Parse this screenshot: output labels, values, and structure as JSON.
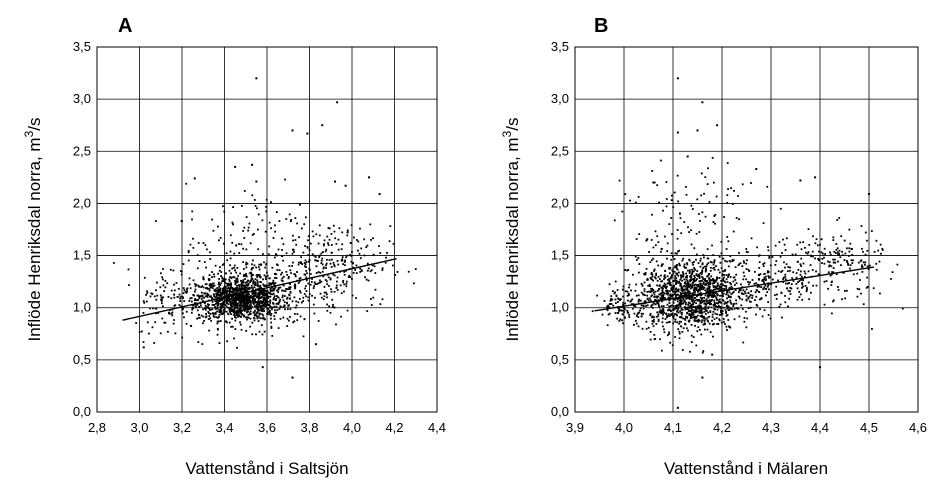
{
  "chart_data": [
    {
      "panel_label": "A",
      "type": "scatter",
      "xlabel": "Vattenstånd i Saltsjön",
      "ylabel_main": "Inflöde Henriksdal norra, m",
      "ylabel_sup": "3",
      "ylabel_tail": "/s",
      "xlim": [
        2.8,
        4.4
      ],
      "ylim": [
        0.0,
        3.5
      ],
      "xticks": [
        "2,8",
        "3,0",
        "3,2",
        "3,4",
        "3,6",
        "3,8",
        "4,0",
        "4,2",
        "4,4"
      ],
      "yticks": [
        "0,0",
        "0,5",
        "1,0",
        "1,5",
        "2,0",
        "2,5",
        "3,0",
        "3,5"
      ],
      "xtick_values": [
        2.8,
        3.0,
        3.2,
        3.4,
        3.6,
        3.8,
        4.0,
        4.2,
        4.4
      ],
      "ytick_values": [
        0.0,
        0.5,
        1.0,
        1.5,
        2.0,
        2.5,
        3.0,
        3.5
      ],
      "grid": true,
      "trendline": {
        "x": [
          2.92,
          4.21
        ],
        "y": [
          0.88,
          1.47
        ]
      },
      "notable_points": [
        {
          "x": 3.55,
          "y": 3.2
        },
        {
          "x": 3.93,
          "y": 2.97
        },
        {
          "x": 3.72,
          "y": 2.7
        },
        {
          "x": 3.86,
          "y": 2.75
        },
        {
          "x": 3.79,
          "y": 2.67
        },
        {
          "x": 3.26,
          "y": 2.24
        },
        {
          "x": 3.55,
          "y": 2.21
        },
        {
          "x": 3.92,
          "y": 2.21
        },
        {
          "x": 3.97,
          "y": 2.17
        },
        {
          "x": 4.08,
          "y": 2.25
        },
        {
          "x": 3.72,
          "y": 0.33
        },
        {
          "x": 3.58,
          "y": 0.43
        },
        {
          "x": 3.02,
          "y": 0.62
        },
        {
          "x": 3.83,
          "y": 0.65
        },
        {
          "x": 3.53,
          "y": 2.37
        },
        {
          "x": 3.45,
          "y": 2.35
        },
        {
          "x": 4.13,
          "y": 2.09
        },
        {
          "x": 3.2,
          "y": 1.83
        }
      ],
      "cloud": [
        {
          "cx": 3.47,
          "cy": 1.08,
          "sx": 0.1,
          "sy": 0.1,
          "n": 950
        },
        {
          "cx": 3.55,
          "cy": 1.15,
          "sx": 0.2,
          "sy": 0.17,
          "n": 500
        },
        {
          "cx": 3.9,
          "cy": 1.42,
          "sx": 0.14,
          "sy": 0.18,
          "n": 200
        },
        {
          "cx": 3.6,
          "cy": 1.7,
          "sx": 0.2,
          "sy": 0.25,
          "n": 120
        },
        {
          "cx": 3.15,
          "cy": 1.05,
          "sx": 0.08,
          "sy": 0.18,
          "n": 90
        }
      ]
    },
    {
      "panel_label": "B",
      "type": "scatter",
      "xlabel": "Vattenstånd i Mälaren",
      "ylabel_main": "Inflöde Henriksdal norra, m",
      "ylabel_sup": "3",
      "ylabel_tail": "/s",
      "xlim": [
        3.9,
        4.6
      ],
      "ylim": [
        0.0,
        3.5
      ],
      "xticks": [
        "3,9",
        "4,0",
        "4,1",
        "4,2",
        "4,3",
        "4,4",
        "4,5",
        "4,6"
      ],
      "yticks": [
        "0,0",
        "0,5",
        "1,0",
        "1,5",
        "2,0",
        "2,5",
        "3,0",
        "3,5"
      ],
      "xtick_values": [
        3.9,
        4.0,
        4.1,
        4.2,
        4.3,
        4.4,
        4.5,
        4.6
      ],
      "ytick_values": [
        0.0,
        0.5,
        1.0,
        1.5,
        2.0,
        2.5,
        3.0,
        3.5
      ],
      "grid": true,
      "trendline": {
        "x": [
          3.94,
          4.51
        ],
        "y": [
          0.97,
          1.39
        ]
      },
      "notable_points": [
        {
          "x": 4.11,
          "y": 3.2
        },
        {
          "x": 4.16,
          "y": 2.97
        },
        {
          "x": 4.11,
          "y": 2.68
        },
        {
          "x": 4.15,
          "y": 2.7
        },
        {
          "x": 4.19,
          "y": 2.75
        },
        {
          "x": 4.13,
          "y": 2.45
        },
        {
          "x": 4.36,
          "y": 2.22
        },
        {
          "x": 4.39,
          "y": 2.25
        },
        {
          "x": 4.16,
          "y": 0.33
        },
        {
          "x": 4.4,
          "y": 0.43
        },
        {
          "x": 4.11,
          "y": 0.04
        },
        {
          "x": 4.5,
          "y": 2.09
        },
        {
          "x": 4.27,
          "y": 2.33
        },
        {
          "x": 4.18,
          "y": 0.55
        },
        {
          "x": 4.06,
          "y": 2.2
        }
      ],
      "cloud": [
        {
          "cx": 4.13,
          "cy": 1.1,
          "sx": 0.05,
          "sy": 0.17,
          "n": 1100
        },
        {
          "cx": 4.25,
          "cy": 1.25,
          "sx": 0.1,
          "sy": 0.15,
          "n": 400
        },
        {
          "cx": 4.43,
          "cy": 1.45,
          "sx": 0.05,
          "sy": 0.15,
          "n": 150
        },
        {
          "cx": 4.14,
          "cy": 1.8,
          "sx": 0.07,
          "sy": 0.3,
          "n": 120
        },
        {
          "cx": 4.0,
          "cy": 1.02,
          "sx": 0.025,
          "sy": 0.08,
          "n": 90
        }
      ]
    }
  ]
}
